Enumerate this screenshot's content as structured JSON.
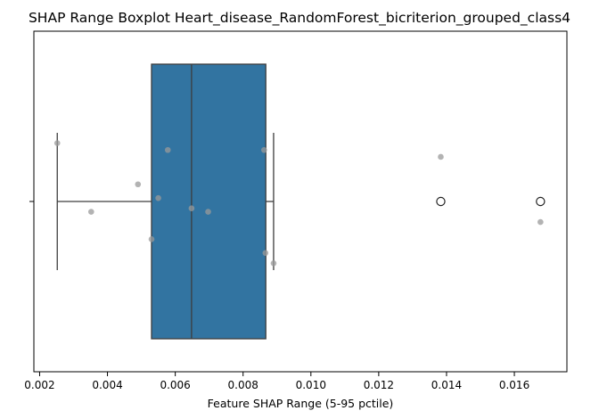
{
  "chart_data": {
    "type": "boxplot",
    "title": "SHAP Range Boxplot Heart_disease_RandomForest_bicriterion_grouped_class4",
    "xlabel": "Feature SHAP Range (5-95 pctile)",
    "ylabel": "",
    "xlim": [
      0.00183,
      0.01755
    ],
    "xticks": [
      0.002,
      0.004,
      0.006,
      0.008,
      0.01,
      0.012,
      0.014,
      0.016
    ],
    "xtick_labels": [
      "0.002",
      "0.004",
      "0.006",
      "0.008",
      "0.010",
      "0.012",
      "0.014",
      "0.016"
    ],
    "grid": false,
    "box": {
      "whisker_low": 0.00252,
      "q1": 0.0053,
      "median": 0.00648,
      "q3": 0.00867,
      "whisker_high": 0.0089,
      "outliers": [
        0.01383,
        0.01677
      ],
      "color": "#3274a1"
    },
    "points": [
      {
        "x": 0.00252,
        "jitter": -0.17
      },
      {
        "x": 0.00352,
        "jitter": 0.03
      },
      {
        "x": 0.0049,
        "jitter": -0.05
      },
      {
        "x": 0.0053,
        "jitter": 0.11
      },
      {
        "x": 0.0055,
        "jitter": -0.01
      },
      {
        "x": 0.00578,
        "jitter": -0.15
      },
      {
        "x": 0.00648,
        "jitter": 0.02
      },
      {
        "x": 0.00697,
        "jitter": 0.03
      },
      {
        "x": 0.00862,
        "jitter": -0.15
      },
      {
        "x": 0.00866,
        "jitter": 0.15
      },
      {
        "x": 0.0089,
        "jitter": 0.18
      },
      {
        "x": 0.01383,
        "jitter": -0.13
      },
      {
        "x": 0.01677,
        "jitter": 0.06
      }
    ],
    "point_color": "#999999",
    "axes_color": "#000000"
  }
}
